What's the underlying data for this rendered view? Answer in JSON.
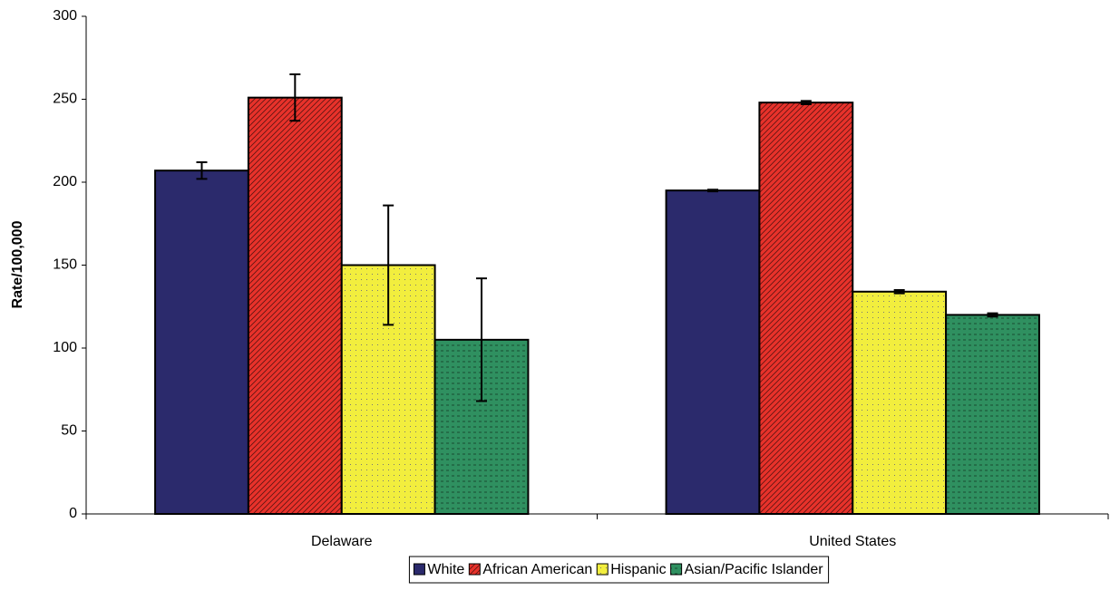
{
  "chart_data": {
    "type": "bar",
    "y_label": "Rate/100,000",
    "categories": [
      "Delaware",
      "United States"
    ],
    "series": [
      {
        "name": "White",
        "color": "#2b2a6c",
        "pattern": "solid",
        "values": [
          207,
          195
        ],
        "errors": [
          5,
          0.5
        ]
      },
      {
        "name": "African American",
        "color": "#e8322b",
        "pattern": "diagonal",
        "values": [
          251,
          248
        ],
        "errors": [
          14,
          1
        ]
      },
      {
        "name": "Hispanic",
        "color": "#f2ee3e",
        "pattern": "dots",
        "values": [
          150,
          134
        ],
        "errors": [
          36,
          1
        ]
      },
      {
        "name": "Asian/Pacific Islander",
        "color": "#2f9060",
        "pattern": "dashes",
        "values": [
          105,
          120
        ],
        "errors": [
          37,
          1
        ]
      }
    ],
    "ylim": [
      0,
      300
    ],
    "yticks": [
      0,
      50,
      100,
      150,
      200,
      250,
      300
    ],
    "grid": false,
    "legend": "bottom"
  }
}
